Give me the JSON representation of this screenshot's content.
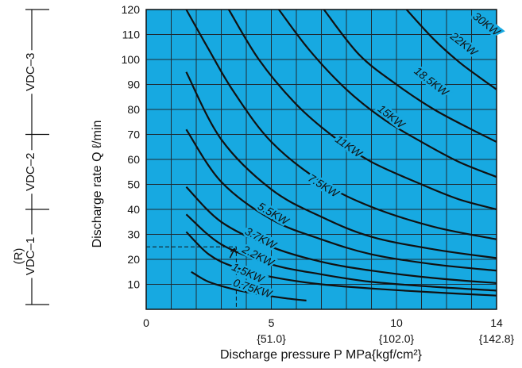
{
  "chart_data": {
    "type": "line",
    "xlabel": "Discharge pressure P  MPa{kgf/cm²}",
    "ylabel": "Discharge rate Q  ℓ/min",
    "xlim": [
      0,
      14
    ],
    "ylim": [
      0,
      120
    ],
    "x_ticks": [
      {
        "value": 0,
        "label": "0",
        "sub": ""
      },
      {
        "value": 5,
        "label": "5",
        "sub": "{51.0}"
      },
      {
        "value": 10,
        "label": "10",
        "sub": "{102.0}"
      },
      {
        "value": 14,
        "label": "14",
        "sub": "{142.8}"
      }
    ],
    "y_ticks": [
      10,
      20,
      30,
      40,
      50,
      60,
      70,
      80,
      90,
      100,
      110,
      120
    ],
    "grid": true,
    "background_color": "#17a9e1",
    "reference_line": {
      "x": 3.6,
      "y": 25
    },
    "series": [
      {
        "name": "0.75KW",
        "x": [
          1.8,
          2.5,
          3.5,
          4.5,
          5.5,
          6.4
        ],
        "y": [
          15,
          11,
          8,
          6,
          4.5,
          3.5
        ]
      },
      {
        "name": "1.5KW",
        "x": [
          1.6,
          2.5,
          3.5,
          5,
          7,
          9.5,
          12,
          14
        ],
        "y": [
          31,
          22,
          17,
          13,
          10,
          8,
          6.5,
          5.5
        ]
      },
      {
        "name": "2.2KW",
        "x": [
          1.6,
          3,
          5,
          7,
          9,
          11.5,
          14
        ],
        "y": [
          38,
          26,
          18,
          14,
          11,
          9,
          7.5
        ]
      },
      {
        "name": "3.7KW",
        "x": [
          1.6,
          3,
          5,
          7,
          9,
          11.5,
          14
        ],
        "y": [
          49,
          35,
          25,
          19,
          15.5,
          12.5,
          10.5
        ]
      },
      {
        "name": "5.5KW",
        "x": [
          1.6,
          3,
          5,
          7,
          9,
          11.5,
          14
        ],
        "y": [
          72,
          51,
          36,
          28,
          22,
          18,
          15.5
        ]
      },
      {
        "name": "7.5KW",
        "x": [
          1.6,
          3,
          5,
          7,
          9,
          11.5,
          14
        ],
        "y": [
          95,
          68,
          48,
          37,
          29,
          24,
          20.5
        ]
      },
      {
        "name": "11KW",
        "x": [
          1.6,
          2.5,
          3.5,
          5,
          7,
          9,
          11.5,
          14
        ],
        "y": [
          120,
          104,
          87,
          67,
          51,
          41,
          33,
          28
        ]
      },
      {
        "name": "15KW",
        "x": [
          3.3,
          4.5,
          6,
          7.5,
          9,
          11,
          12.5,
          14
        ],
        "y": [
          120,
          100,
          82,
          69,
          59,
          50,
          44,
          40
        ]
      },
      {
        "name": "18.5KW",
        "x": [
          5.3,
          6.5,
          8,
          9.5,
          11,
          12.5,
          14
        ],
        "y": [
          120,
          104,
          88,
          76,
          67,
          59,
          53
        ]
      },
      {
        "name": "22KW",
        "x": [
          7.1,
          8.5,
          10,
          11.5,
          13,
          14
        ],
        "y": [
          120,
          102,
          90,
          80,
          72,
          67
        ]
      },
      {
        "name": "30KW",
        "x": [
          10.4,
          11.5,
          12.5,
          13.3,
          14
        ],
        "y": [
          120,
          108,
          99,
          93,
          88
        ]
      }
    ],
    "ranges": [
      {
        "label": "VDC–3",
        "y_low": 70,
        "y_high": 120
      },
      {
        "label": "VDC–2",
        "y_low": 40,
        "y_high": 70
      },
      {
        "label": "VDC–1",
        "sub": "(R)",
        "y_low": 0,
        "y_high": 40
      }
    ]
  }
}
